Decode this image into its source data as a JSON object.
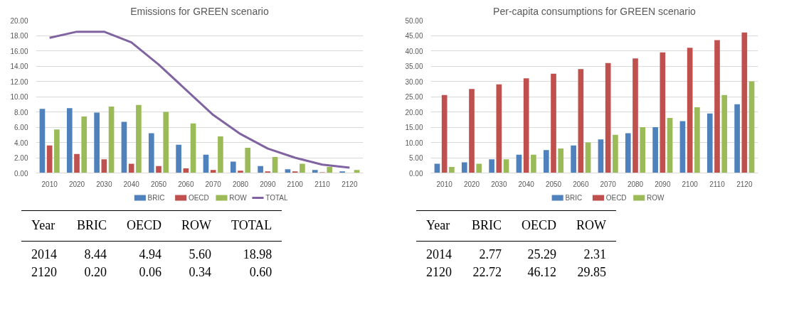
{
  "chart_data": [
    {
      "type": "bar",
      "title": "Emissions for GREEN scenario",
      "categories": [
        "2010",
        "2020",
        "2030",
        "2040",
        "2050",
        "2060",
        "2070",
        "2080",
        "2090",
        "2100",
        "2110",
        "2120"
      ],
      "series": [
        {
          "name": "BRIC",
          "color": "#4f81bd",
          "values": [
            8.4,
            8.5,
            7.9,
            6.7,
            5.2,
            3.7,
            2.4,
            1.5,
            0.9,
            0.5,
            0.4,
            0.2
          ]
        },
        {
          "name": "OECD",
          "color": "#c0504d",
          "values": [
            3.6,
            2.5,
            1.8,
            1.2,
            0.9,
            0.6,
            0.4,
            0.3,
            0.2,
            0.2,
            0.1,
            0.0
          ]
        },
        {
          "name": "ROW",
          "color": "#9bbb59",
          "values": [
            5.7,
            7.4,
            8.7,
            8.9,
            8.0,
            6.5,
            4.8,
            3.3,
            2.1,
            1.2,
            0.8,
            0.4
          ]
        },
        {
          "name": "TOTAL",
          "color": "#8064a2",
          "type": "line",
          "values": [
            17.7,
            18.5,
            18.5,
            17.1,
            14.2,
            10.9,
            7.6,
            5.1,
            3.2,
            2.0,
            1.1,
            0.7
          ]
        }
      ],
      "ylim": [
        0,
        20
      ],
      "yticks": [
        {
          "value": 0,
          "label": "0.00"
        },
        {
          "value": 2,
          "label": "2.00"
        },
        {
          "value": 4,
          "label": "4.00"
        },
        {
          "value": 6,
          "label": "6.00"
        },
        {
          "value": 8,
          "label": "8.00"
        },
        {
          "value": 10,
          "label": "10.00"
        },
        {
          "value": 12,
          "label": "12.00"
        },
        {
          "value": 14,
          "label": "14.00"
        },
        {
          "value": 16,
          "label": "16.00"
        },
        {
          "value": 18,
          "label": "18.00"
        },
        {
          "value": 20,
          "label": "20.00"
        }
      ],
      "grid": "y",
      "legend": "bottom",
      "marker": "none",
      "line_style": "solid",
      "annotations": [
        "Year",
        "BRIC",
        "OECD",
        "ROW",
        "TOTAL",
        "2014",
        "8.44",
        "4.94",
        "5.60",
        "18.98",
        "2120",
        "0.20",
        "0.06",
        "0.34",
        "0.60"
      ]
    },
    {
      "type": "bar",
      "title": "Per-capita consumptions for GREEN scenario",
      "categories": [
        "2010",
        "2020",
        "2030",
        "2040",
        "2050",
        "2060",
        "2070",
        "2080",
        "2090",
        "2100",
        "2110",
        "2120"
      ],
      "series": [
        {
          "name": "BRIC",
          "color": "#4f81bd",
          "values": [
            3,
            3.5,
            4.5,
            6,
            7.5,
            9,
            11,
            13,
            15,
            17,
            19.5,
            22.5
          ]
        },
        {
          "name": "OECD",
          "color": "#c0504d",
          "values": [
            25.5,
            27.5,
            29,
            31,
            32.5,
            34,
            36,
            37.5,
            39.5,
            41,
            43.5,
            46
          ]
        },
        {
          "name": "ROW",
          "color": "#9bbb59",
          "values": [
            2,
            3,
            4.5,
            6,
            8,
            10,
            12.5,
            15,
            18,
            21.5,
            25.5,
            30
          ]
        }
      ],
      "ylim": [
        0,
        50
      ],
      "yticks": [
        {
          "value": 0,
          "label": "0.00"
        },
        {
          "value": 5,
          "label": "5.00"
        },
        {
          "value": 10,
          "label": "10.00"
        },
        {
          "value": 15,
          "label": "15.00"
        },
        {
          "value": 20,
          "label": "20.00"
        },
        {
          "value": 25,
          "label": "25.00"
        },
        {
          "value": 30,
          "label": "30.00"
        },
        {
          "value": 35,
          "label": "35.00"
        },
        {
          "value": 40,
          "label": "40.00"
        },
        {
          "value": 45,
          "label": "45.00"
        },
        {
          "value": 50,
          "label": "50.00"
        }
      ],
      "grid": "y",
      "legend": "bottom",
      "annotations": [
        "Year",
        "BRIC",
        "OECD",
        "ROW",
        "2014",
        "2.77",
        "25.29",
        "2.31",
        "2120",
        "22.72",
        "46.12",
        "29.85"
      ]
    }
  ]
}
